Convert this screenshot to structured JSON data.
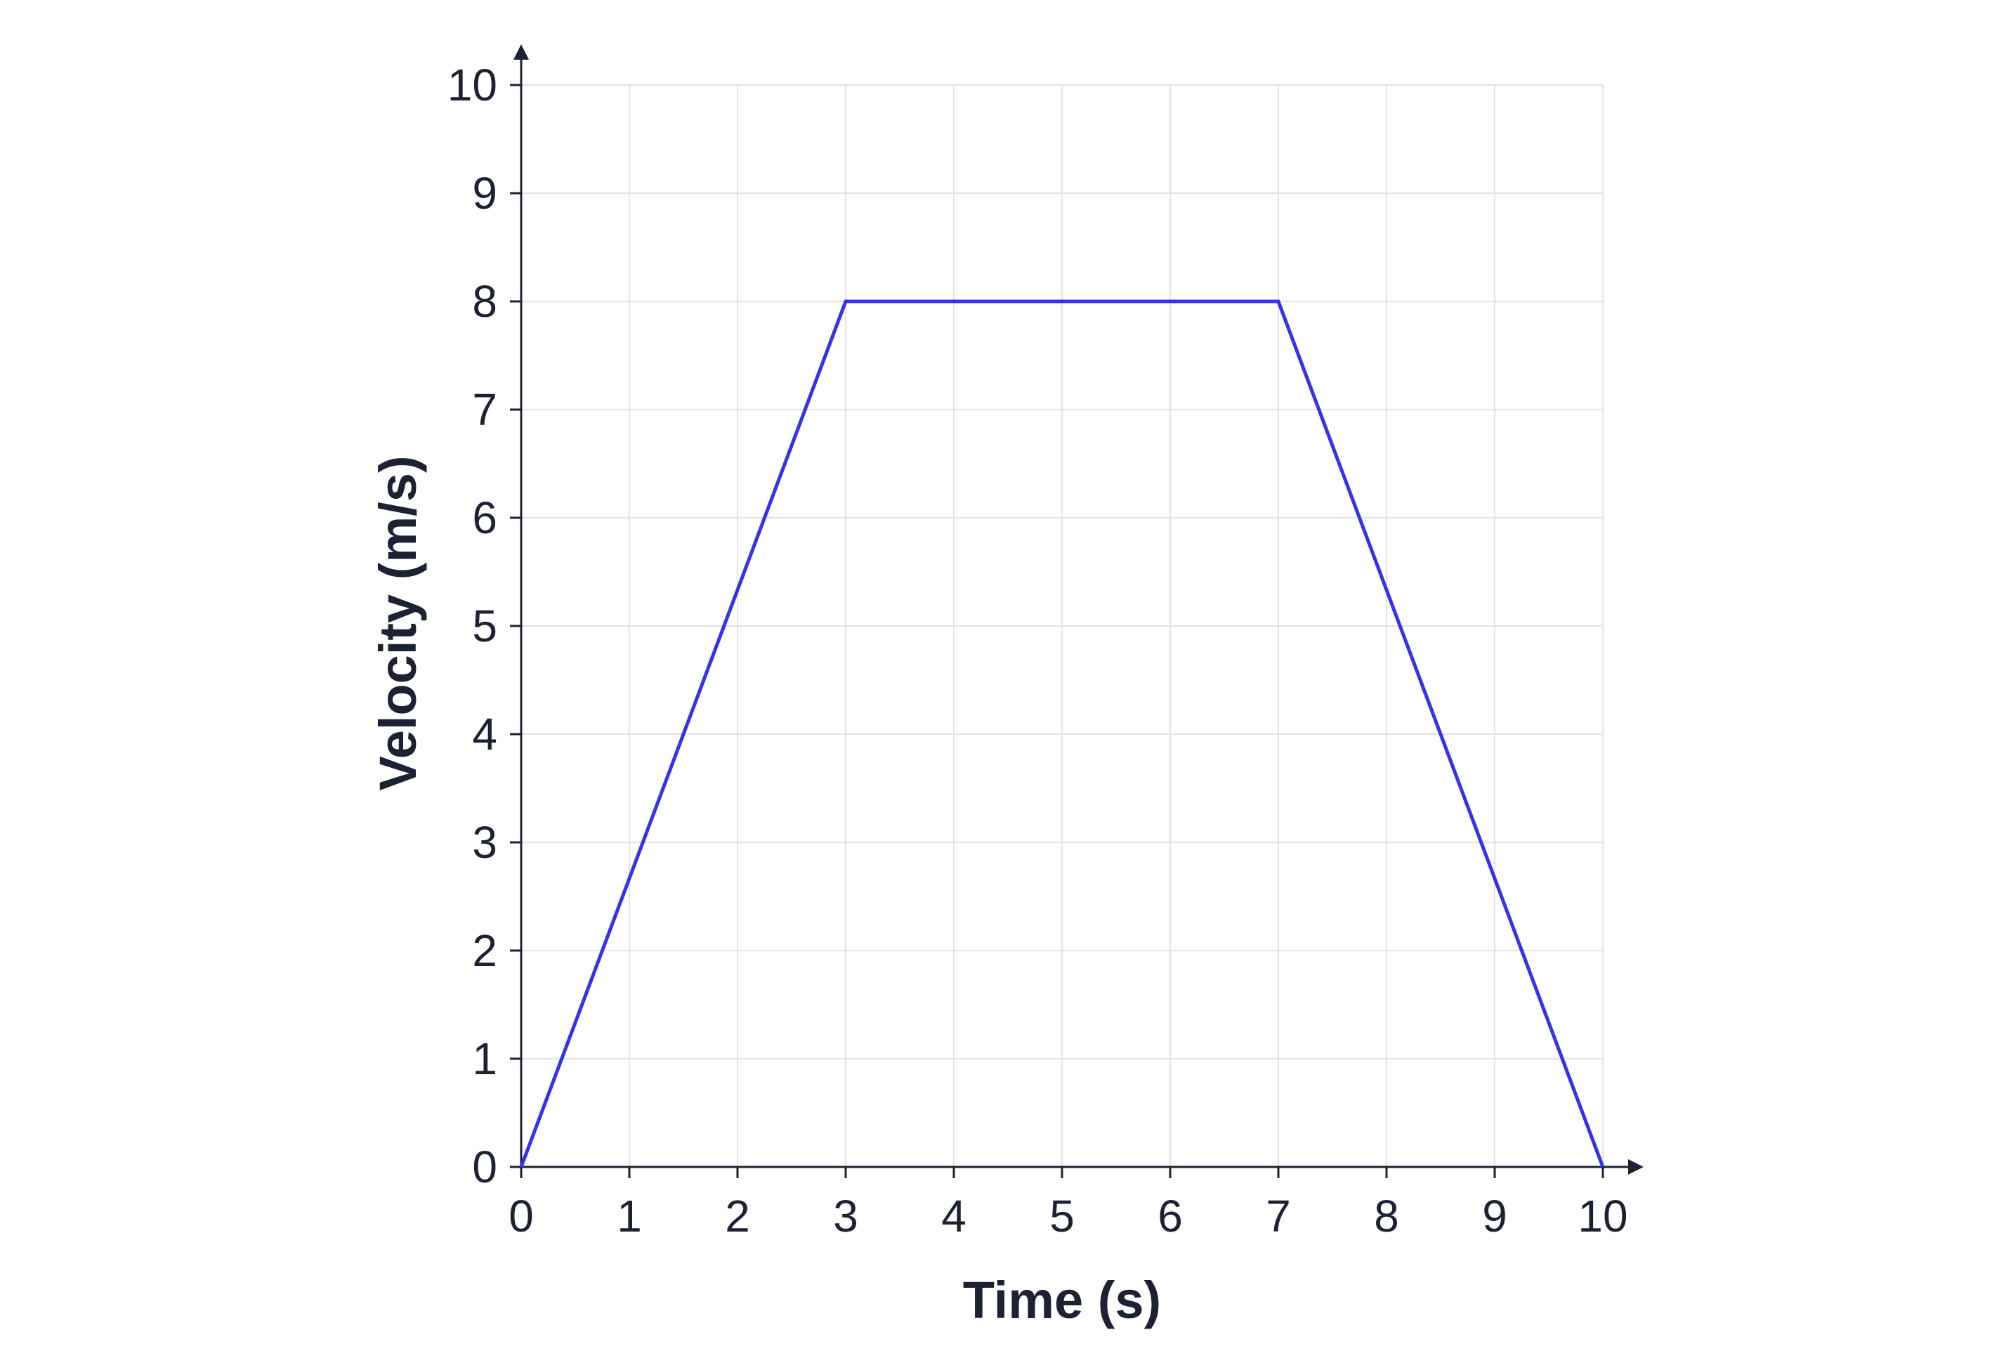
{
  "chart_data": {
    "type": "line",
    "title": "",
    "xlabel": "Time (s)",
    "ylabel": "Velocity (m/s)",
    "xlim": [
      0,
      10
    ],
    "ylim": [
      0,
      10
    ],
    "x_ticks": [
      0,
      1,
      2,
      3,
      4,
      5,
      6,
      7,
      8,
      9,
      10
    ],
    "y_ticks": [
      0,
      1,
      2,
      3,
      4,
      5,
      6,
      7,
      8,
      9,
      10
    ],
    "grid": true,
    "series": [
      {
        "x": [
          0,
          3,
          7,
          10
        ],
        "y": [
          0,
          8,
          8,
          0
        ],
        "color": "#3333ee"
      }
    ],
    "colors": {
      "line": "#3333ee",
      "axis": "#1c2133",
      "grid": "#e3e3e3",
      "text": "#1c2133"
    }
  }
}
